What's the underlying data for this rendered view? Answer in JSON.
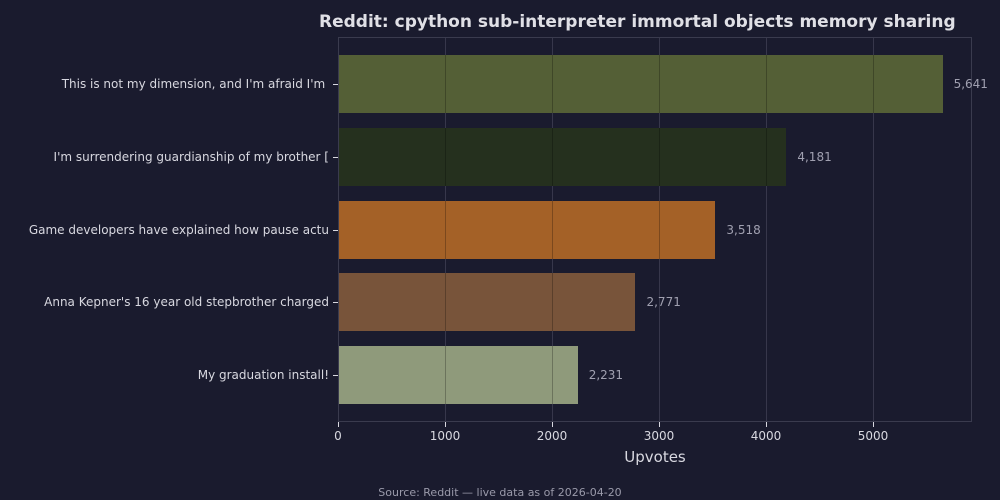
{
  "chart_data": {
    "type": "bar",
    "orientation": "horizontal",
    "title": "Reddit: cpython sub-interpreter immortal objects memory sharing",
    "xlabel": "Upvotes",
    "ylabel": "",
    "categories": [
      "This is not my dimension, and I'm afraid I'm ",
      "I'm surrendering guardianship of my brother [",
      "Game developers have explained how pause actu",
      "Anna Kepner's 16 year old stepbrother charged",
      "My graduation install!"
    ],
    "values": [
      5641,
      4181,
      3518,
      2771,
      2231
    ],
    "value_labels": [
      "5,641",
      "4,181",
      "3,518",
      "2,771",
      "2,231"
    ],
    "colors": [
      "#545f36",
      "#25301e",
      "#a46127",
      "#78543a",
      "#8f9a7b"
    ],
    "xlim": [
      0,
      5925
    ],
    "xticks": [
      0,
      1000,
      2000,
      3000,
      4000,
      5000
    ],
    "xtick_labels": [
      "0",
      "1000",
      "2000",
      "3000",
      "4000",
      "5000"
    ],
    "grid": "x",
    "legend": null,
    "footnote": "Source: Reddit — live data as of 2026-04-20"
  },
  "header": {
    "title": "Reddit: cpython sub-interpreter immortal objects memory sharing"
  },
  "axes": {
    "xlabel": "Upvotes",
    "xtick_labels": [
      "0",
      "1000",
      "2000",
      "3000",
      "4000",
      "5000"
    ]
  },
  "bars": [
    {
      "label": "This is not my dimension, and I'm afraid I'm ",
      "value_label": "5,641"
    },
    {
      "label": "I'm surrendering guardianship of my brother [",
      "value_label": "4,181"
    },
    {
      "label": "Game developers have explained how pause actu",
      "value_label": "3,518"
    },
    {
      "label": "Anna Kepner's 16 year old stepbrother charged",
      "value_label": "2,771"
    },
    {
      "label": "My graduation install!",
      "value_label": "2,231"
    }
  ],
  "footer": {
    "source": "Source: Reddit — live data as of 2026-04-20"
  },
  "colors": {
    "background": "#1a1b2e",
    "text": "#d8d8e0",
    "value_text": "#a0a0b0"
  }
}
